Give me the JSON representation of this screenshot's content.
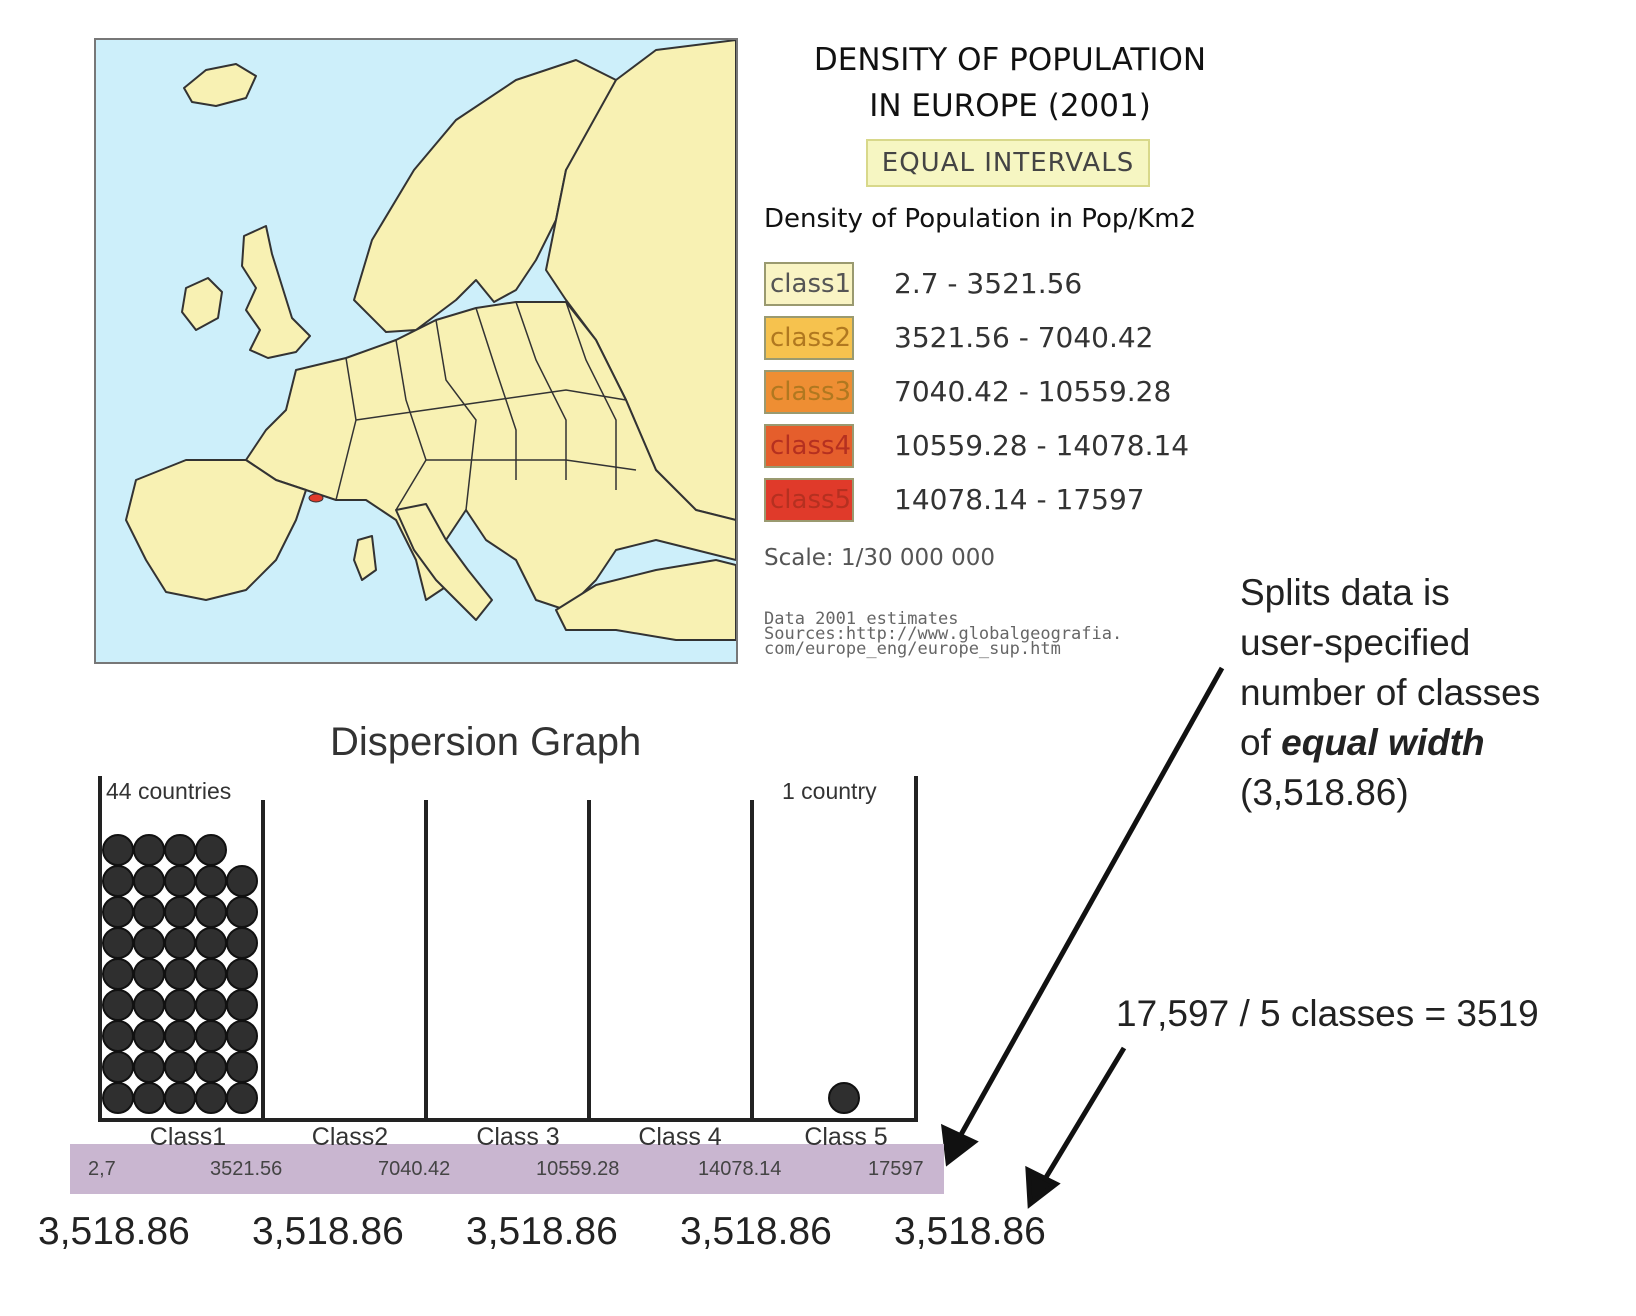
{
  "map": {
    "background_sea": "#cdeffa",
    "land_color": "#f8f1b3",
    "highlight_color": "#e03a2a"
  },
  "legend": {
    "title_line1": "DENSITY OF POPULATION",
    "title_line2": "IN EUROPE (2001)",
    "method": "EQUAL INTERVALS",
    "units": "Density of Population in Pop/Km2",
    "classes": [
      {
        "label": "class1",
        "range": "2.7 - 3521.56",
        "color": "#f9f4c4"
      },
      {
        "label": "class2",
        "range": "3521.56 - 7040.42",
        "color": "#f6c24e"
      },
      {
        "label": "class3",
        "range": "7040.42 - 10559.28",
        "color": "#ee8e33"
      },
      {
        "label": "class4",
        "range": "10559.28 - 14078.14",
        "color": "#e55e2c"
      },
      {
        "label": "class5",
        "range": "14078.14 - 17597",
        "color": "#e03a2a"
      }
    ],
    "scale": "Scale: 1/30 000 000",
    "source_line1": "Data 2001 estimates",
    "source_line2": "Sources:http://www.globalgeografia.",
    "source_line3": "com/europe_eng/europe_sup.htm"
  },
  "annotations": {
    "splits_line1": "Splits data is",
    "splits_line2": "user-specified",
    "splits_line3": "number of classes",
    "splits_line4_prefix": "of ",
    "splits_line4_bold": "equal width",
    "splits_line5": "(3,518.86)",
    "calc": "17,597 / 5 classes = 3519"
  },
  "graph": {
    "title": "Dispersion Graph",
    "left_count": "44 countries",
    "right_count": "1 country",
    "class_labels": [
      "Class1",
      "Class2",
      "Class 3",
      "Class 4",
      "Class 5"
    ],
    "breaks": [
      "2,7",
      "3521.56",
      "7040.42",
      "10559.28",
      "14078.14",
      "17597"
    ],
    "widths": [
      "3,518.86",
      "3,518.86",
      "3,518.86",
      "3,518.86",
      "3,518.86"
    ],
    "bar_color": "#c9b6d0"
  },
  "chart_data": {
    "type": "scatter",
    "title": "Dispersion Graph",
    "categories": [
      "Class1",
      "Class2",
      "Class 3",
      "Class 4",
      "Class 5"
    ],
    "counts": [
      44,
      0,
      0,
      0,
      1
    ],
    "breaks": [
      2.7,
      3521.56,
      7040.42,
      10559.28,
      14078.14,
      17597
    ],
    "class_width": 3518.86
  }
}
